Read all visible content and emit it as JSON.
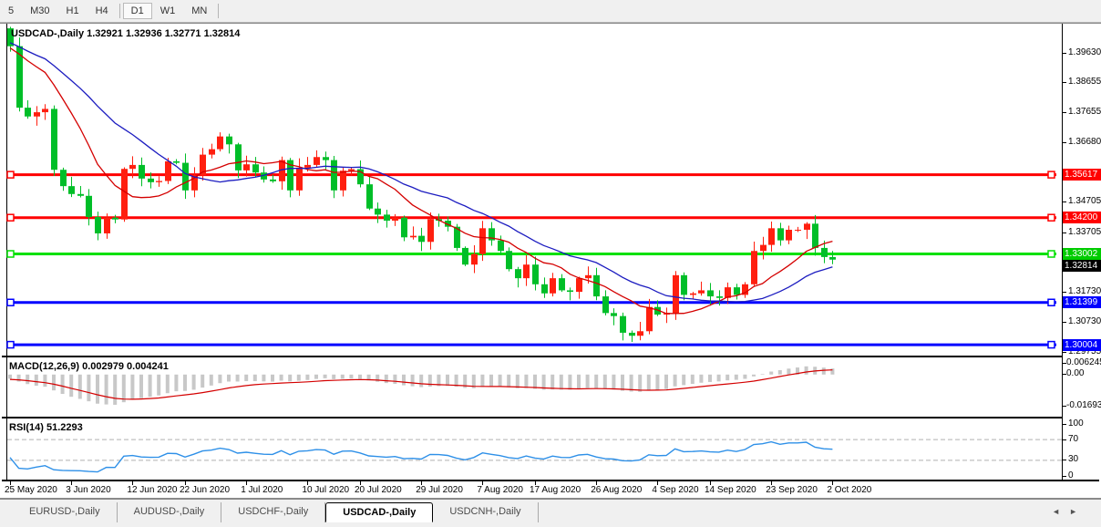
{
  "toolbar": {
    "items": [
      "5",
      "M30",
      "H1",
      "H4",
      "D1",
      "W1",
      "MN"
    ],
    "active_item": "D1"
  },
  "icons": {
    "tab_scroll_left": "◄",
    "tab_scroll_right": "►"
  },
  "tabs": {
    "items": [
      "EURUSD-,Daily",
      "AUDUSD-,Daily",
      "USDCHF-,Daily",
      "USDCAD-,Daily",
      "USDCNH-,Daily"
    ],
    "active": "USDCAD-,Daily"
  },
  "chart_data": {
    "type": "candlestick",
    "title": "USDCAD-,Daily  1.32921 1.32936 1.32771 1.32814",
    "symbol": "USDCAD-",
    "timeframe": "Daily",
    "quote_open": "1.32921",
    "quote_high": "1.32936",
    "quote_low": "1.32771",
    "quote_close": "1.32814",
    "price_axis_ticks": [
      "1.39630",
      "1.38655",
      "1.37655",
      "1.36680",
      "1.34705",
      "1.33705",
      "1.31730",
      "1.30730",
      "1.29755"
    ],
    "price_labels": [
      {
        "text": "1.35617",
        "value": 1.35617,
        "color": "#FF0000"
      },
      {
        "text": "1.34200",
        "value": 1.342,
        "color": "#FF0000"
      },
      {
        "text": "1.33002",
        "value": 1.33002,
        "color": "#00CC00"
      },
      {
        "text": "1.32814",
        "value": 1.32814,
        "color": "#000000"
      },
      {
        "text": "1.31399",
        "value": 1.31399,
        "color": "#0000FF"
      },
      {
        "text": "1.30004",
        "value": 1.30004,
        "color": "#0000FF"
      }
    ],
    "horizontal_lines": [
      {
        "value": 1.35617,
        "color": "#FF0000"
      },
      {
        "value": 1.342,
        "color": "#FF0000"
      },
      {
        "value": 1.33002,
        "color": "#00E000"
      },
      {
        "value": 1.31399,
        "color": "#0000FF"
      },
      {
        "value": 1.30004,
        "color": "#0000FF"
      }
    ],
    "x_tick_labels": [
      "25 May 2020",
      "3 Jun 2020",
      "12 Jun 2020",
      "22 Jun 2020",
      "1 Jul 2020",
      "10 Jul 2020",
      "20 Jul 2020",
      "29 Jul 2020",
      "7 Aug 2020",
      "17 Aug 2020",
      "26 Aug 2020",
      "4 Sep 2020",
      "14 Sep 2020",
      "23 Sep 2020",
      "2 Oct 2020"
    ],
    "x_tick_indices": [
      0,
      7,
      14,
      20,
      27,
      34,
      40,
      47,
      54,
      60,
      67,
      74,
      80,
      87,
      94
    ],
    "first_open": 1.4045,
    "closes": [
      1.3986,
      1.3783,
      1.3754,
      1.3768,
      1.3779,
      1.3578,
      1.3524,
      1.3498,
      1.3492,
      1.3422,
      1.3368,
      1.342,
      1.3414,
      1.3581,
      1.3594,
      1.3549,
      1.3537,
      1.3541,
      1.3606,
      1.3601,
      1.351,
      1.356,
      1.3628,
      1.3646,
      1.3688,
      1.3662,
      1.3576,
      1.3596,
      1.3569,
      1.3546,
      1.354,
      1.361,
      1.351,
      1.3585,
      1.3594,
      1.362,
      1.361,
      1.351,
      1.3575,
      1.358,
      1.353,
      1.345,
      1.343,
      1.341,
      1.342,
      1.3355,
      1.336,
      1.334,
      1.3415,
      1.341,
      1.339,
      1.332,
      1.3265,
      1.33,
      1.3385,
      1.3345,
      1.331,
      1.325,
      1.322,
      1.3265,
      1.32,
      1.317,
      1.322,
      1.318,
      1.3175,
      1.322,
      1.323,
      1.316,
      1.3105,
      1.3095,
      1.304,
      1.303,
      1.3045,
      1.3125,
      1.31,
      1.3105,
      1.323,
      1.3165,
      1.317,
      1.318,
      1.316,
      1.3155,
      1.319,
      1.3165,
      1.32,
      1.331,
      1.333,
      1.3385,
      1.3345,
      1.338,
      1.338,
      1.34,
      1.332,
      1.329,
      1.32814
    ],
    "prehistory_closes": [
      1.41,
      1.408,
      1.4105,
      1.409,
      1.4075,
      1.408,
      1.406,
      1.4045,
      1.405,
      1.4035,
      1.402,
      1.4025,
      1.401,
      1.3995,
      1.4,
      1.3985,
      1.399,
      1.3975,
      1.398,
      1.3965,
      1.397,
      1.3985,
      1.398,
      1.3975,
      1.399,
      1.3995
    ],
    "ma_fast": {
      "period": 10,
      "color": "#D40000"
    },
    "ma_slow": {
      "period": 20,
      "color": "#1C1CC0"
    },
    "candle_up_color": "#FF1F0F",
    "candle_down_color": "#00BE28",
    "macd": {
      "label": "MACD(12,26,9) 0.002979 0.004241",
      "fast": 12,
      "slow": 26,
      "signal": 9,
      "value": 0.002979,
      "signal_value": 0.004241,
      "axis_ticks": [
        {
          "text": "0.006245",
          "v": 0.006245
        },
        {
          "text": "0.00",
          "v": 0
        },
        {
          "text": "-0.016933",
          "v": -0.016933
        }
      ],
      "histogram_color": "#C8C8C8",
      "signal_color": "#D40000"
    },
    "rsi": {
      "label": "RSI(14) 51.2293",
      "period": 14,
      "value": 51.2293,
      "axis_ticks": [
        {
          "text": "100",
          "v": 100
        },
        {
          "text": "70",
          "v": 70
        },
        {
          "text": "30",
          "v": 30
        },
        {
          "text": "0",
          "v": 0
        }
      ],
      "levels": [
        70,
        30
      ],
      "level_color": "#b0b0b0",
      "line_color": "#2E90E8"
    }
  }
}
